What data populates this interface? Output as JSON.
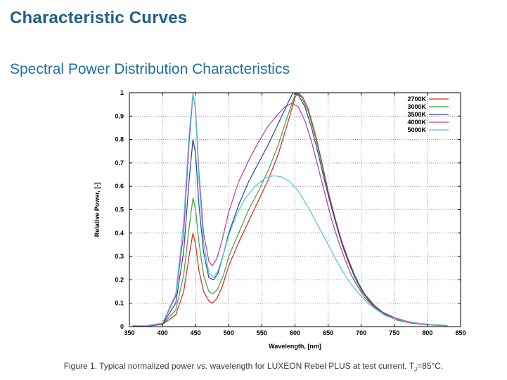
{
  "page": {
    "section_title": "Characteristic Curves",
    "figure_title": "Spectral Power Distribution Characteristics"
  },
  "caption": {
    "text": "Figure 1. Typical normalized power vs. wavelength for LUXEON Rebel PLUS at test current, T",
    "subscript": "J",
    "suffix": "=85°C."
  },
  "chart_data": {
    "type": "line",
    "title": "Spectral Power Distribution Characteristics",
    "xlabel": "Wavelength, [nm]",
    "ylabel": "Relative Power, [-]",
    "xlim": [
      350,
      850
    ],
    "ylim": [
      0,
      1
    ],
    "grid": true,
    "legend_position": "top-right",
    "x_ticks": [
      "350",
      "400",
      "450",
      "500",
      "550",
      "600",
      "650",
      "700",
      "750",
      "800",
      "850"
    ],
    "y_ticks": [
      "0",
      "0.1",
      "0.2",
      "0.3",
      "0.4",
      "0.5",
      "0.6",
      "0.7",
      "0.8",
      "0.9",
      "1"
    ],
    "series": [
      {
        "name": "2700K",
        "color": "#e02020",
        "points": [
          [
            355,
            0.004
          ],
          [
            380,
            0.003
          ],
          [
            400,
            0.01
          ],
          [
            420,
            0.05
          ],
          [
            432,
            0.15
          ],
          [
            440,
            0.3
          ],
          [
            446,
            0.4
          ],
          [
            450,
            0.35
          ],
          [
            455,
            0.24
          ],
          [
            462,
            0.15
          ],
          [
            470,
            0.11
          ],
          [
            475,
            0.1
          ],
          [
            482,
            0.12
          ],
          [
            490,
            0.17
          ],
          [
            500,
            0.26
          ],
          [
            515,
            0.36
          ],
          [
            530,
            0.45
          ],
          [
            545,
            0.54
          ],
          [
            560,
            0.63
          ],
          [
            575,
            0.74
          ],
          [
            590,
            0.88
          ],
          [
            600,
            0.98
          ],
          [
            605,
            1.0
          ],
          [
            612,
            0.98
          ],
          [
            620,
            0.93
          ],
          [
            630,
            0.83
          ],
          [
            640,
            0.71
          ],
          [
            650,
            0.58
          ],
          [
            660,
            0.47
          ],
          [
            670,
            0.37
          ],
          [
            680,
            0.29
          ],
          [
            690,
            0.22
          ],
          [
            700,
            0.16
          ],
          [
            715,
            0.1
          ],
          [
            730,
            0.065
          ],
          [
            750,
            0.038
          ],
          [
            770,
            0.022
          ],
          [
            790,
            0.013
          ],
          [
            810,
            0.008
          ],
          [
            830,
            0.005
          ]
        ]
      },
      {
        "name": "3000K",
        "color": "#3aa53a",
        "points": [
          [
            355,
            0.004
          ],
          [
            380,
            0.003
          ],
          [
            400,
            0.01
          ],
          [
            420,
            0.07
          ],
          [
            432,
            0.22
          ],
          [
            440,
            0.42
          ],
          [
            446,
            0.55
          ],
          [
            450,
            0.5
          ],
          [
            455,
            0.36
          ],
          [
            462,
            0.22
          ],
          [
            470,
            0.15
          ],
          [
            476,
            0.14
          ],
          [
            483,
            0.16
          ],
          [
            492,
            0.22
          ],
          [
            500,
            0.3
          ],
          [
            515,
            0.4
          ],
          [
            530,
            0.5
          ],
          [
            545,
            0.58
          ],
          [
            560,
            0.67
          ],
          [
            575,
            0.78
          ],
          [
            590,
            0.91
          ],
          [
            600,
            0.99
          ],
          [
            603,
            1.0
          ],
          [
            610,
            0.98
          ],
          [
            620,
            0.92
          ],
          [
            630,
            0.82
          ],
          [
            640,
            0.7
          ],
          [
            650,
            0.57
          ],
          [
            660,
            0.46
          ],
          [
            670,
            0.36
          ],
          [
            680,
            0.28
          ],
          [
            690,
            0.21
          ],
          [
            700,
            0.155
          ],
          [
            715,
            0.095
          ],
          [
            730,
            0.06
          ],
          [
            750,
            0.035
          ],
          [
            770,
            0.02
          ],
          [
            790,
            0.012
          ],
          [
            810,
            0.007
          ],
          [
            830,
            0.005
          ]
        ]
      },
      {
        "name": "3500K",
        "color": "#2a3f9a",
        "points": [
          [
            355,
            0.004
          ],
          [
            380,
            0.003
          ],
          [
            400,
            0.01
          ],
          [
            420,
            0.1
          ],
          [
            432,
            0.32
          ],
          [
            440,
            0.62
          ],
          [
            446,
            0.8
          ],
          [
            450,
            0.74
          ],
          [
            455,
            0.52
          ],
          [
            462,
            0.32
          ],
          [
            470,
            0.21
          ],
          [
            477,
            0.2
          ],
          [
            484,
            0.23
          ],
          [
            492,
            0.31
          ],
          [
            500,
            0.4
          ],
          [
            515,
            0.52
          ],
          [
            530,
            0.62
          ],
          [
            545,
            0.7
          ],
          [
            560,
            0.78
          ],
          [
            575,
            0.87
          ],
          [
            590,
            0.96
          ],
          [
            597,
            1.0
          ],
          [
            605,
            0.99
          ],
          [
            615,
            0.94
          ],
          [
            625,
            0.85
          ],
          [
            635,
            0.74
          ],
          [
            645,
            0.62
          ],
          [
            655,
            0.51
          ],
          [
            665,
            0.41
          ],
          [
            675,
            0.32
          ],
          [
            685,
            0.25
          ],
          [
            695,
            0.19
          ],
          [
            705,
            0.14
          ],
          [
            720,
            0.09
          ],
          [
            735,
            0.055
          ],
          [
            755,
            0.03
          ],
          [
            775,
            0.017
          ],
          [
            795,
            0.01
          ],
          [
            815,
            0.006
          ],
          [
            830,
            0.004
          ]
        ]
      },
      {
        "name": "4000K",
        "color": "#b03aa8",
        "points": [
          [
            355,
            0.004
          ],
          [
            380,
            0.003
          ],
          [
            400,
            0.012
          ],
          [
            420,
            0.13
          ],
          [
            432,
            0.4
          ],
          [
            440,
            0.78
          ],
          [
            446,
            0.99
          ],
          [
            450,
            0.93
          ],
          [
            455,
            0.66
          ],
          [
            462,
            0.4
          ],
          [
            470,
            0.28
          ],
          [
            475,
            0.26
          ],
          [
            482,
            0.29
          ],
          [
            490,
            0.37
          ],
          [
            500,
            0.49
          ],
          [
            515,
            0.62
          ],
          [
            530,
            0.71
          ],
          [
            545,
            0.79
          ],
          [
            560,
            0.86
          ],
          [
            575,
            0.91
          ],
          [
            585,
            0.94
          ],
          [
            595,
            0.955
          ],
          [
            605,
            0.94
          ],
          [
            615,
            0.88
          ],
          [
            625,
            0.79
          ],
          [
            635,
            0.68
          ],
          [
            645,
            0.57
          ],
          [
            655,
            0.46
          ],
          [
            665,
            0.37
          ],
          [
            675,
            0.29
          ],
          [
            685,
            0.22
          ],
          [
            695,
            0.17
          ],
          [
            705,
            0.125
          ],
          [
            720,
            0.08
          ],
          [
            735,
            0.05
          ],
          [
            755,
            0.027
          ],
          [
            775,
            0.015
          ],
          [
            795,
            0.009
          ],
          [
            815,
            0.005
          ],
          [
            830,
            0.004
          ]
        ]
      },
      {
        "name": "5000K",
        "color": "#4cc6d6",
        "points": [
          [
            355,
            0.005
          ],
          [
            375,
            0.004
          ],
          [
            400,
            0.015
          ],
          [
            420,
            0.14
          ],
          [
            432,
            0.45
          ],
          [
            440,
            0.82
          ],
          [
            446,
            1.0
          ],
          [
            450,
            0.92
          ],
          [
            455,
            0.63
          ],
          [
            462,
            0.36
          ],
          [
            470,
            0.23
          ],
          [
            477,
            0.21
          ],
          [
            484,
            0.24
          ],
          [
            492,
            0.31
          ],
          [
            500,
            0.39
          ],
          [
            512,
            0.48
          ],
          [
            525,
            0.55
          ],
          [
            540,
            0.6
          ],
          [
            555,
            0.635
          ],
          [
            568,
            0.645
          ],
          [
            580,
            0.64
          ],
          [
            592,
            0.62
          ],
          [
            605,
            0.58
          ],
          [
            620,
            0.51
          ],
          [
            635,
            0.43
          ],
          [
            650,
            0.35
          ],
          [
            665,
            0.27
          ],
          [
            680,
            0.2
          ],
          [
            695,
            0.145
          ],
          [
            710,
            0.1
          ],
          [
            725,
            0.068
          ],
          [
            740,
            0.045
          ],
          [
            755,
            0.03
          ],
          [
            775,
            0.018
          ],
          [
            795,
            0.011
          ],
          [
            815,
            0.007
          ],
          [
            830,
            0.005
          ]
        ]
      }
    ]
  }
}
